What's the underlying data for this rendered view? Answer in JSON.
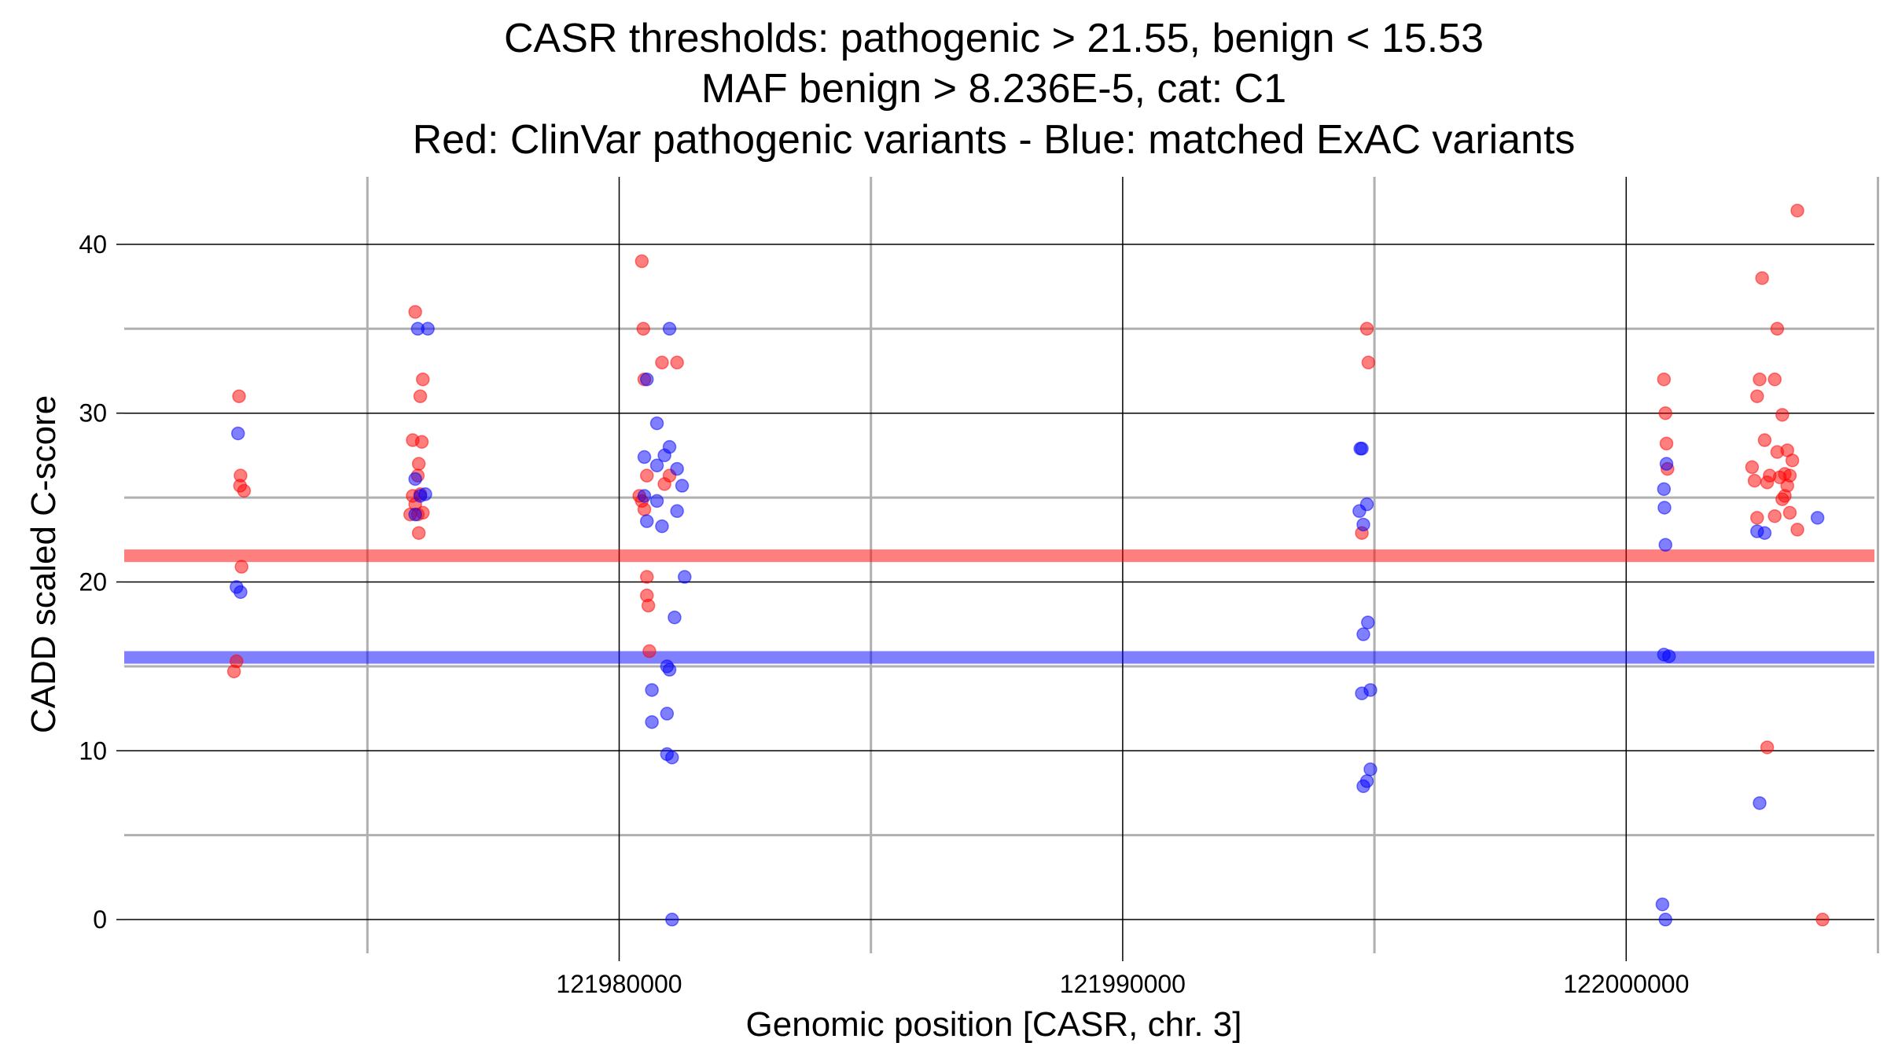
{
  "chart_data": {
    "type": "scatter",
    "title_lines": [
      "CASR thresholds: pathogenic > 21.55, benign < 15.53",
      "MAF benign > 8.236E-5, cat: C1",
      "Red: ClinVar pathogenic variants - Blue: matched ExAC variants"
    ],
    "xlabel": "Genomic position [CASR, chr. 3]",
    "ylabel": "CADD scaled C-score",
    "xlim": [
      121970170,
      122004930
    ],
    "ylim": [
      -2,
      44
    ],
    "x_ticks": [
      121980000,
      121990000,
      122000000
    ],
    "x_tick_labels": [
      "121980000",
      "121990000",
      "122000000"
    ],
    "x_minor_ticks": [
      121975000,
      121985000,
      121995000,
      122005000
    ],
    "y_ticks": [
      0,
      10,
      20,
      30,
      40
    ],
    "y_tick_labels": [
      "0",
      "10",
      "20",
      "30",
      "40"
    ],
    "y_minor_ticks": [
      5,
      15,
      25,
      35
    ],
    "grid": true,
    "thresholds": [
      {
        "name": "pathogenic",
        "value": 21.55,
        "color": "#ff0000"
      },
      {
        "name": "benign",
        "value": 15.53,
        "color": "#0000ff"
      }
    ],
    "series": [
      {
        "name": "ClinVar pathogenic variants",
        "color": "#ff0000",
        "points": [
          [
            121972450,
            31.0
          ],
          [
            121972480,
            26.3
          ],
          [
            121972470,
            25.7
          ],
          [
            121972550,
            25.4
          ],
          [
            121972500,
            20.9
          ],
          [
            121972400,
            15.3
          ],
          [
            121972350,
            14.7
          ],
          [
            121975950,
            36.0
          ],
          [
            121976100,
            32.0
          ],
          [
            121976050,
            31.0
          ],
          [
            121975900,
            28.4
          ],
          [
            121976080,
            28.3
          ],
          [
            121976020,
            27.0
          ],
          [
            121976000,
            26.3
          ],
          [
            121975900,
            25.1
          ],
          [
            121976050,
            25.2
          ],
          [
            121975950,
            24.6
          ],
          [
            121976100,
            24.1
          ],
          [
            121976000,
            24.0
          ],
          [
            121975850,
            24.0
          ],
          [
            121976020,
            22.9
          ],
          [
            121980450,
            39.0
          ],
          [
            121980480,
            35.0
          ],
          [
            121980850,
            33.0
          ],
          [
            121981150,
            33.0
          ],
          [
            121980500,
            32.0
          ],
          [
            121980550,
            26.3
          ],
          [
            121980900,
            25.8
          ],
          [
            121981000,
            26.3
          ],
          [
            121980400,
            25.1
          ],
          [
            121980450,
            24.8
          ],
          [
            121980500,
            24.3
          ],
          [
            121980550,
            20.3
          ],
          [
            121980550,
            19.2
          ],
          [
            121980580,
            18.6
          ],
          [
            121980600,
            15.9
          ],
          [
            121994850,
            35.0
          ],
          [
            121994880,
            33.0
          ],
          [
            121994750,
            22.9
          ],
          [
            122000750,
            32.0
          ],
          [
            122000780,
            30.0
          ],
          [
            122000800,
            28.2
          ],
          [
            122000820,
            26.7
          ],
          [
            122002700,
            38.0
          ],
          [
            122003000,
            35.0
          ],
          [
            122002650,
            32.0
          ],
          [
            122002950,
            32.0
          ],
          [
            122002600,
            31.0
          ],
          [
            122003100,
            29.9
          ],
          [
            122002750,
            28.4
          ],
          [
            122003200,
            27.8
          ],
          [
            122003000,
            27.7
          ],
          [
            122003300,
            27.2
          ],
          [
            122002500,
            26.8
          ],
          [
            122002850,
            26.3
          ],
          [
            122003150,
            26.4
          ],
          [
            122003250,
            26.3
          ],
          [
            122003050,
            26.2
          ],
          [
            122002550,
            26.0
          ],
          [
            122002800,
            25.9
          ],
          [
            122003200,
            25.7
          ],
          [
            122003150,
            25.1
          ],
          [
            122003100,
            24.9
          ],
          [
            122002600,
            23.8
          ],
          [
            122002950,
            23.9
          ],
          [
            122003250,
            24.1
          ],
          [
            122003400,
            23.1
          ],
          [
            122003400,
            42.0
          ],
          [
            122002800,
            10.2
          ],
          [
            122003900,
            0.0
          ]
        ]
      },
      {
        "name": "matched ExAC variants",
        "color": "#0000ff",
        "points": [
          [
            121972430,
            28.8
          ],
          [
            121972400,
            19.7
          ],
          [
            121972480,
            19.4
          ],
          [
            121976000,
            35.0
          ],
          [
            121976200,
            35.0
          ],
          [
            121975950,
            26.1
          ],
          [
            121976150,
            25.2
          ],
          [
            121976050,
            25.1
          ],
          [
            121975950,
            24.0
          ],
          [
            121981000,
            35.0
          ],
          [
            121980550,
            32.0
          ],
          [
            121980750,
            29.4
          ],
          [
            121980500,
            27.4
          ],
          [
            121980900,
            27.5
          ],
          [
            121981000,
            28.0
          ],
          [
            121980750,
            26.9
          ],
          [
            121981150,
            26.7
          ],
          [
            121981250,
            25.7
          ],
          [
            121980500,
            25.1
          ],
          [
            121980750,
            24.8
          ],
          [
            121981150,
            24.2
          ],
          [
            121980550,
            23.6
          ],
          [
            121980850,
            23.3
          ],
          [
            121981300,
            20.3
          ],
          [
            121981100,
            17.9
          ],
          [
            121980950,
            15.0
          ],
          [
            121981000,
            14.8
          ],
          [
            121980650,
            13.6
          ],
          [
            121980950,
            12.2
          ],
          [
            121980650,
            11.7
          ],
          [
            121980950,
            9.8
          ],
          [
            121981050,
            9.6
          ],
          [
            121981050,
            0.0
          ],
          [
            121994720,
            27.9
          ],
          [
            121994750,
            27.9
          ],
          [
            121994850,
            24.6
          ],
          [
            121994700,
            24.2
          ],
          [
            121994780,
            23.4
          ],
          [
            121994870,
            17.6
          ],
          [
            121994780,
            16.9
          ],
          [
            121994920,
            13.6
          ],
          [
            121994750,
            13.4
          ],
          [
            121994920,
            8.9
          ],
          [
            121994850,
            8.2
          ],
          [
            121994780,
            7.9
          ],
          [
            122000800,
            27.0
          ],
          [
            122000750,
            25.5
          ],
          [
            122000760,
            24.4
          ],
          [
            122000780,
            22.2
          ],
          [
            122000750,
            15.7
          ],
          [
            122000850,
            15.6
          ],
          [
            122000720,
            0.9
          ],
          [
            122000780,
            0.0
          ],
          [
            122002600,
            23.0
          ],
          [
            122002750,
            22.9
          ],
          [
            122003800,
            23.8
          ],
          [
            122002650,
            6.9
          ]
        ]
      }
    ]
  }
}
